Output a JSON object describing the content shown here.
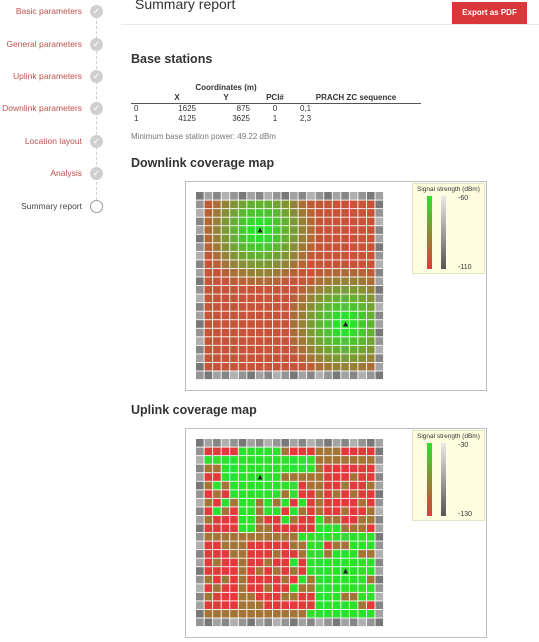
{
  "sidebar": {
    "steps": [
      {
        "label": "Basic parameters",
        "state": "done"
      },
      {
        "label": "General parameters",
        "state": "done"
      },
      {
        "label": "Uplink parameters",
        "state": "done"
      },
      {
        "label": "Downlink parameters",
        "state": "done"
      },
      {
        "label": "Location layout",
        "state": "done"
      },
      {
        "label": "Analysis",
        "state": "done"
      },
      {
        "label": "Summary report",
        "state": "current"
      }
    ],
    "check_icon": "✓"
  },
  "header": {
    "title": "Summary report",
    "export_label": "Export as PDF"
  },
  "base_stations": {
    "heading": "Base stations",
    "coords_group": "Coordinates (m)",
    "columns": [
      "",
      "X",
      "Y",
      "PCI#",
      "PRACH ZC sequence"
    ],
    "rows": [
      [
        "0",
        "1625",
        "875",
        "0",
        "0,1"
      ],
      [
        "1",
        "4125",
        "3625",
        "1",
        "2,3"
      ]
    ],
    "min_power": "Minimum base station power: 49.22 dBm"
  },
  "downlink_map": {
    "heading": "Downlink coverage map",
    "legend_title": "Signal strength (dBm)",
    "legend_max": "-60",
    "legend_min": "-110"
  },
  "uplink_map": {
    "heading": "Uplink coverage map",
    "legend_title": "Signal strength (dBm)",
    "legend_max": "-30",
    "legend_min": "-130"
  },
  "colors": {
    "accent": "#d9373a",
    "link": "#c0504d",
    "green": "#2ee02e",
    "red": "#e23a3a",
    "border_gray": "#7a7a7a"
  }
}
